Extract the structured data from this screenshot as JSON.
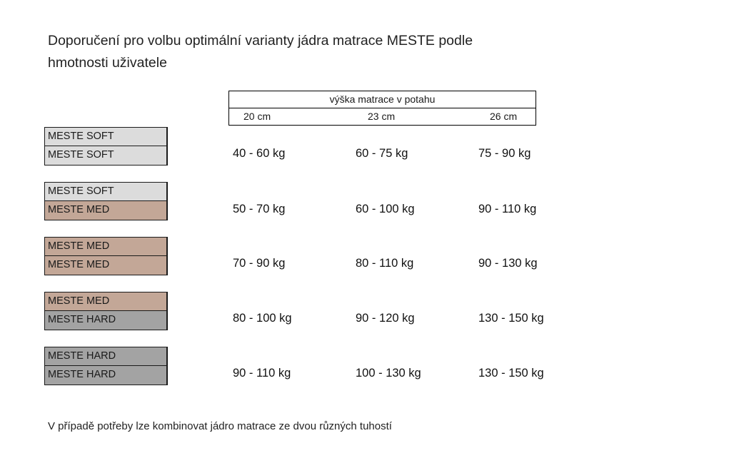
{
  "title": {
    "line1": "Doporučení pro volbu optimální varianty jádra matrace MESTE podle",
    "line2": "hmotnosti uživatele"
  },
  "header": {
    "group_label": "výška matrace v potahu",
    "columns": [
      "20 cm",
      "23 cm",
      "26 cm"
    ]
  },
  "rows": [
    {
      "layers": [
        {
          "label": "MESTE SOFT",
          "type": "soft"
        },
        {
          "label": "MESTE SOFT",
          "type": "soft"
        }
      ],
      "values": [
        "40 - 60 kg",
        "60 - 75 kg",
        "75 - 90 kg"
      ]
    },
    {
      "layers": [
        {
          "label": "MESTE SOFT",
          "type": "soft"
        },
        {
          "label": "MESTE MED",
          "type": "med"
        }
      ],
      "values": [
        "50 - 70 kg",
        "60 - 100 kg",
        "90 - 110 kg"
      ]
    },
    {
      "layers": [
        {
          "label": "MESTE MED",
          "type": "med"
        },
        {
          "label": "MESTE MED",
          "type": "med"
        }
      ],
      "values": [
        "70 - 90 kg",
        "80 - 110 kg",
        "90 - 130 kg"
      ]
    },
    {
      "layers": [
        {
          "label": "MESTE MED",
          "type": "med"
        },
        {
          "label": "MESTE HARD",
          "type": "hard"
        }
      ],
      "values": [
        "80 - 100 kg",
        "90 - 120 kg",
        "130 - 150 kg"
      ]
    },
    {
      "layers": [
        {
          "label": "MESTE HARD",
          "type": "hard"
        },
        {
          "label": "MESTE HARD",
          "type": "hard"
        }
      ],
      "values": [
        "90 - 110 kg",
        "100 - 130 kg",
        "130 - 150 kg"
      ]
    }
  ],
  "colors": {
    "soft": "#dcdcdc",
    "med": "#c3a797",
    "hard": "#a3a3a3"
  },
  "footnote": "V případě potřeby lze kombinovat jádro matrace ze dvou různých tuhostí"
}
